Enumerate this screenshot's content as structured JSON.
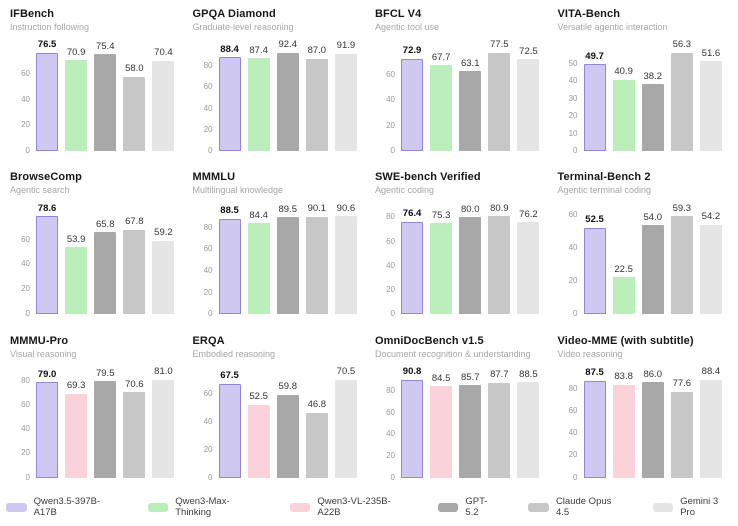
{
  "models": [
    {
      "name": "Qwen3.5-397B-A17B",
      "fill": "#cfc9f1",
      "border": "#9186db",
      "highlight": true
    },
    {
      "name": "Qwen3-Max-Thinking",
      "fill": "#bceebb",
      "border": "",
      "highlight": false
    },
    {
      "name": "Qwen3-VL-235B-A22B",
      "fill": "#fbd1da",
      "border": "",
      "highlight": false
    },
    {
      "name": "GPT-5.2",
      "fill": "#a8a8a8",
      "border": "",
      "highlight": false
    },
    {
      "name": "Claude Opus 4.5",
      "fill": "#c7c7c7",
      "border": "",
      "highlight": false
    },
    {
      "name": "Gemini 3 Pro",
      "fill": "#e5e5e5",
      "border": "",
      "highlight": false
    }
  ],
  "chart_data": [
    {
      "type": "bar",
      "title": "IFBench",
      "subtitle": "Instruction following",
      "yticks": [
        0,
        20,
        40,
        60
      ],
      "bars": [
        {
          "model": "Qwen3.5-397B-A17B",
          "value": 76.5
        },
        {
          "model": "Qwen3-Max-Thinking",
          "value": 70.9
        },
        {
          "model": "GPT-5.2",
          "value": 75.4
        },
        {
          "model": "Claude Opus 4.5",
          "value": 58.0
        },
        {
          "model": "Gemini 3 Pro",
          "value": 70.4
        }
      ]
    },
    {
      "type": "bar",
      "title": "GPQA Diamond",
      "subtitle": "Graduate-level reasoning",
      "yticks": [
        0,
        20,
        40,
        60,
        80
      ],
      "bars": [
        {
          "model": "Qwen3.5-397B-A17B",
          "value": 88.4
        },
        {
          "model": "Qwen3-Max-Thinking",
          "value": 87.4
        },
        {
          "model": "GPT-5.2",
          "value": 92.4
        },
        {
          "model": "Claude Opus 4.5",
          "value": 87.0
        },
        {
          "model": "Gemini 3 Pro",
          "value": 91.9
        }
      ]
    },
    {
      "type": "bar",
      "title": "BFCL V4",
      "subtitle": "Agentic tool use",
      "yticks": [
        0,
        20,
        40,
        60
      ],
      "bars": [
        {
          "model": "Qwen3.5-397B-A17B",
          "value": 72.9
        },
        {
          "model": "Qwen3-Max-Thinking",
          "value": 67.7
        },
        {
          "model": "GPT-5.2",
          "value": 63.1
        },
        {
          "model": "Claude Opus 4.5",
          "value": 77.5
        },
        {
          "model": "Gemini 3 Pro",
          "value": 72.5
        }
      ]
    },
    {
      "type": "bar",
      "title": "VITA-Bench",
      "subtitle": "Versatile agentic interaction",
      "yticks": [
        0,
        10,
        20,
        30,
        40,
        50
      ],
      "bars": [
        {
          "model": "Qwen3.5-397B-A17B",
          "value": 49.7
        },
        {
          "model": "Qwen3-Max-Thinking",
          "value": 40.9
        },
        {
          "model": "GPT-5.2",
          "value": 38.2
        },
        {
          "model": "Claude Opus 4.5",
          "value": 56.3
        },
        {
          "model": "Gemini 3 Pro",
          "value": 51.6
        }
      ]
    },
    {
      "type": "bar",
      "title": "BrowseComp",
      "subtitle": "Agentic search",
      "yticks": [
        0,
        20,
        40,
        60
      ],
      "bars": [
        {
          "model": "Qwen3.5-397B-A17B",
          "value": 78.6
        },
        {
          "model": "Qwen3-Max-Thinking",
          "value": 53.9
        },
        {
          "model": "GPT-5.2",
          "value": 65.8
        },
        {
          "model": "Claude Opus 4.5",
          "value": 67.8
        },
        {
          "model": "Gemini 3 Pro",
          "value": 59.2
        }
      ]
    },
    {
      "type": "bar",
      "title": "MMMLU",
      "subtitle": "Multilingual knowledge",
      "yticks": [
        0,
        20,
        40,
        60,
        80
      ],
      "bars": [
        {
          "model": "Qwen3.5-397B-A17B",
          "value": 88.5
        },
        {
          "model": "Qwen3-Max-Thinking",
          "value": 84.4
        },
        {
          "model": "GPT-5.2",
          "value": 89.5
        },
        {
          "model": "Claude Opus 4.5",
          "value": 90.1
        },
        {
          "model": "Gemini 3 Pro",
          "value": 90.6
        }
      ]
    },
    {
      "type": "bar",
      "title": "SWE-bench Verified",
      "subtitle": "Agentic coding",
      "yticks": [
        0,
        20,
        40,
        60,
        80
      ],
      "bars": [
        {
          "model": "Qwen3.5-397B-A17B",
          "value": 76.4
        },
        {
          "model": "Qwen3-Max-Thinking",
          "value": 75.3
        },
        {
          "model": "GPT-5.2",
          "value": 80.0
        },
        {
          "model": "Claude Opus 4.5",
          "value": 80.9
        },
        {
          "model": "Gemini 3 Pro",
          "value": 76.2
        }
      ]
    },
    {
      "type": "bar",
      "title": "Terminal-Bench 2",
      "subtitle": "Agentic terminal coding",
      "yticks": [
        0,
        20,
        40,
        60
      ],
      "bars": [
        {
          "model": "Qwen3.5-397B-A17B",
          "value": 52.5
        },
        {
          "model": "Qwen3-Max-Thinking",
          "value": 22.5
        },
        {
          "model": "GPT-5.2",
          "value": 54.0
        },
        {
          "model": "Claude Opus 4.5",
          "value": 59.3
        },
        {
          "model": "Gemini 3 Pro",
          "value": 54.2
        }
      ]
    },
    {
      "type": "bar",
      "title": "MMMU-Pro",
      "subtitle": "Visual reasoning",
      "yticks": [
        0,
        20,
        40,
        60,
        80
      ],
      "bars": [
        {
          "model": "Qwen3.5-397B-A17B",
          "value": 79.0
        },
        {
          "model": "Qwen3-VL-235B-A22B",
          "value": 69.3
        },
        {
          "model": "GPT-5.2",
          "value": 79.5
        },
        {
          "model": "Claude Opus 4.5",
          "value": 70.6
        },
        {
          "model": "Gemini 3 Pro",
          "value": 81.0
        }
      ]
    },
    {
      "type": "bar",
      "title": "ERQA",
      "subtitle": "Embodied reasoning",
      "yticks": [
        0,
        20,
        40,
        60
      ],
      "bars": [
        {
          "model": "Qwen3.5-397B-A17B",
          "value": 67.5
        },
        {
          "model": "Qwen3-VL-235B-A22B",
          "value": 52.5
        },
        {
          "model": "GPT-5.2",
          "value": 59.8
        },
        {
          "model": "Claude Opus 4.5",
          "value": 46.8
        },
        {
          "model": "Gemini 3 Pro",
          "value": 70.5
        }
      ]
    },
    {
      "type": "bar",
      "title": "OmniDocBench v1.5",
      "subtitle": "Document recognition & understanding",
      "yticks": [
        0,
        20,
        40,
        60,
        80
      ],
      "bars": [
        {
          "model": "Qwen3.5-397B-A17B",
          "value": 90.8
        },
        {
          "model": "Qwen3-VL-235B-A22B",
          "value": 84.5
        },
        {
          "model": "GPT-5.2",
          "value": 85.7
        },
        {
          "model": "Claude Opus 4.5",
          "value": 87.7
        },
        {
          "model": "Gemini 3 Pro",
          "value": 88.5
        }
      ]
    },
    {
      "type": "bar",
      "title": "Video-MME (with subtitle)",
      "subtitle": "Video reasoning",
      "yticks": [
        0,
        20,
        40,
        60,
        80
      ],
      "bars": [
        {
          "model": "Qwen3.5-397B-A17B",
          "value": 87.5
        },
        {
          "model": "Qwen3-VL-235B-A22B",
          "value": 83.8
        },
        {
          "model": "GPT-5.2",
          "value": 86.0
        },
        {
          "model": "Claude Opus 4.5",
          "value": 77.6
        },
        {
          "model": "Gemini 3 Pro",
          "value": 88.4
        }
      ]
    }
  ],
  "legend": {
    "items": [
      "Qwen3.5-397B-A17B",
      "Qwen3-Max-Thinking",
      "Qwen3-VL-235B-A22B",
      "GPT-5.2",
      "Claude Opus 4.5",
      "Gemini 3 Pro"
    ]
  }
}
